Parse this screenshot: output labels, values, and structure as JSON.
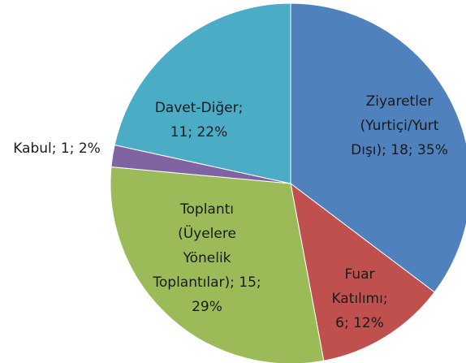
{
  "chart_data": {
    "type": "pie",
    "values": [
      18,
      6,
      15,
      1,
      11
    ],
    "value_labels": [
      "Ziyaretler (Yurtiçi/Yurt Dışı); 18; 35%",
      "Fuar Katılımı; 6; 12%",
      "Toplantı (Üyelere Yönelik Toplantılar); 15; 29%",
      "Kabul; 1; 2%",
      "Davet-Diğer; 11; 22%"
    ],
    "colors": [
      "#4f81bd",
      "#c0504d",
      "#9bbb59",
      "#8064a2",
      "#4bacc6"
    ]
  }
}
